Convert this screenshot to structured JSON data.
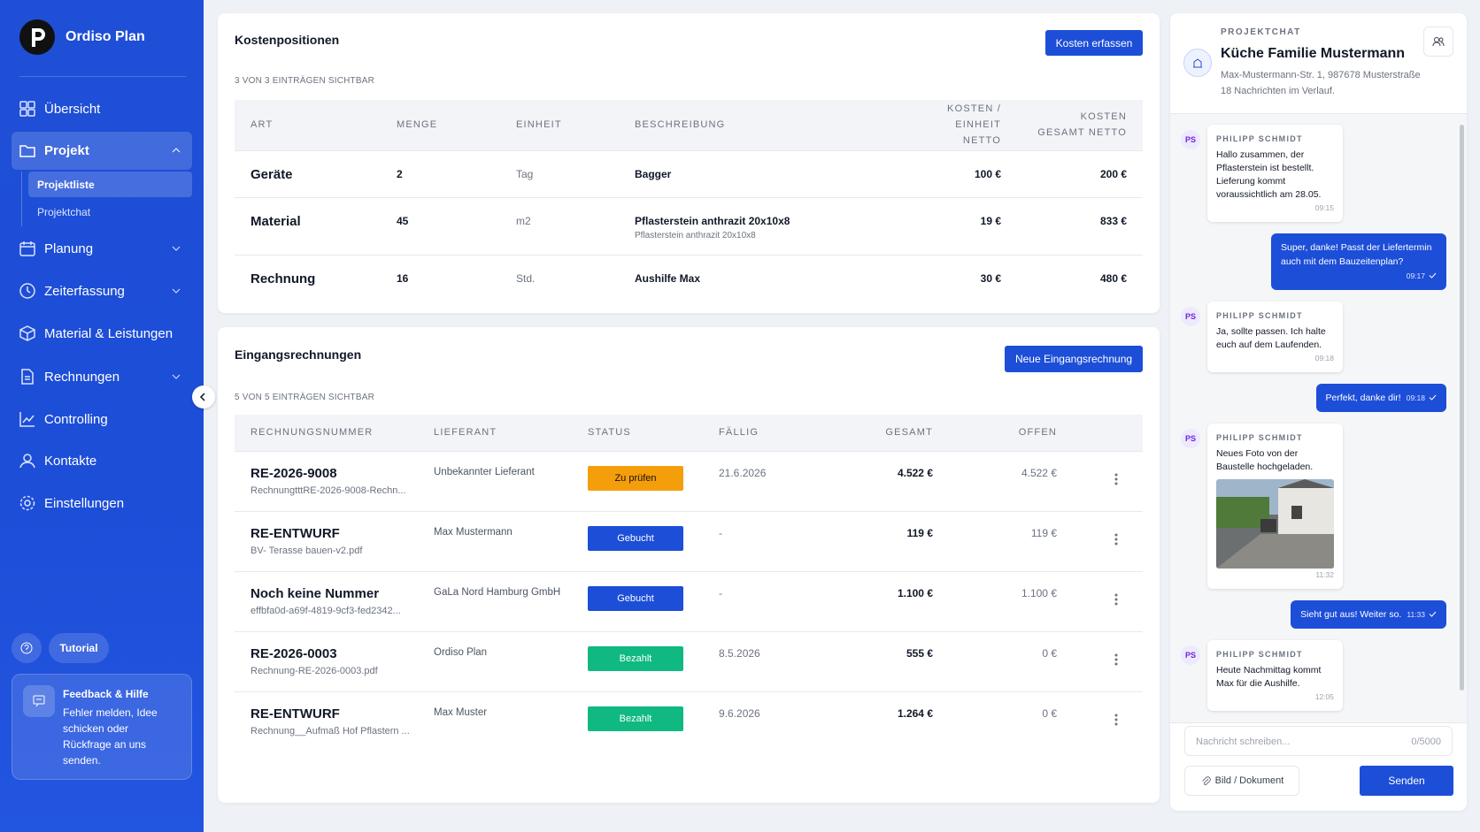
{
  "sidebar": {
    "brand": "Ordiso Plan",
    "nav": [
      "Übersicht",
      "Projekt",
      "Planung",
      "Zeiterfassung",
      "Material & Leistungen",
      "Rechnungen",
      "Controlling",
      "Kontakte",
      "Einstellungen"
    ],
    "subnav": [
      "Projektliste",
      "Projektchat"
    ],
    "tutorial": "Tutorial",
    "feedback": {
      "title": "Feedback & Hilfe",
      "text": "Fehler melden, Idee schicken oder Rückfrage an uns senden."
    }
  },
  "costs": {
    "title": "Kostenpositionen",
    "button": "Kosten erfassen",
    "count": "3 VON 3 EINTRÄGEN SICHTBAR",
    "headers": [
      "ART",
      "MENGE",
      "EINHEIT",
      "BESCHREIBUNG",
      "KOSTEN / EINHEIT NETTO",
      "KOSTEN GESAMT NETTO"
    ],
    "rows": [
      {
        "art": "Geräte",
        "menge": "2",
        "einheit": "Tag",
        "beschreibung": "Bagger",
        "detail": null,
        "einzel": "100 €",
        "gesamt": "200 €"
      },
      {
        "art": "Material",
        "menge": "45",
        "einheit": "m2",
        "beschreibung": "Pflasterstein anthrazit 20x10x8",
        "detail": "Pflasterstein anthrazit 20x10x8",
        "einzel": "19 €",
        "gesamt": "833 €"
      },
      {
        "art": "Rechnung",
        "menge": "16",
        "einheit": "Std.",
        "beschreibung": "Aushilfe Max",
        "detail": null,
        "einzel": "30 €",
        "gesamt": "480 €"
      }
    ]
  },
  "invoices": {
    "title": "Eingangsrechnungen",
    "button": "Neue Eingangsrechnung",
    "count": "5 VON 5 EINTRÄGEN SICHTBAR",
    "headers": [
      "RECHNUNGSNUMMER",
      "LIEFERANT",
      "STATUS",
      "FÄLLIG",
      "GESAMT",
      "OFFEN"
    ],
    "rows": [
      {
        "nummer": "RE-2026-9008",
        "datei": "RechnungtttRE-2026-9008-Rechn...",
        "lieferant": "Unbekannter Lieferant",
        "status": "Zu prüfen",
        "faellig": "21.6.2026",
        "gesamt": "4.522 €",
        "offen": "4.522 €"
      },
      {
        "nummer": "RE-ENTWURF",
        "datei": "BV- Terasse bauen-v2.pdf",
        "lieferant": "Max Mustermann",
        "status": "Gebucht",
        "faellig": "-",
        "gesamt": "119 €",
        "offen": "119 €"
      },
      {
        "nummer": "Noch keine Nummer",
        "datei": "effbfa0d-a69f-4819-9cf3-fed2342...",
        "lieferant": "GaLa Nord Hamburg GmbH",
        "status": "Gebucht",
        "faellig": "-",
        "gesamt": "1.100 €",
        "offen": "1.100 €"
      },
      {
        "nummer": "RE-2026-0003",
        "datei": "Rechnung-RE-2026-0003.pdf",
        "lieferant": "Ordiso Plan",
        "status": "Bezahlt",
        "faellig": "8.5.2026",
        "gesamt": "555 €",
        "offen": "0 €"
      },
      {
        "nummer": "RE-ENTWURF",
        "datei": "Rechnung__Aufmaß Hof Pflastern ...",
        "lieferant": "Max Muster",
        "status": "Bezahlt",
        "faellig": "9.6.2026",
        "gesamt": "1.264 €",
        "offen": "0 €"
      }
    ]
  },
  "chat": {
    "label": "PROJEKTCHAT",
    "title": "Küche Familie Mustermann",
    "address": "Max-Mustermann-Str. 1, 987678 Musterstraße",
    "info": "18 Nachrichten im Verlauf.",
    "messages": [
      {
        "avatar": "PS",
        "sender": "PHILIPP SCHMIDT",
        "text": "Hallo zusammen, der Pflasterstein ist bestellt. Lieferung kommt voraussichtlich am 28.05.",
        "time": "09:15"
      },
      {
        "text": "Super, danke! Passt der Liefertermin auch mit dem Bauzeitenplan?",
        "time": "09:17"
      },
      {
        "avatar": "PS",
        "sender": "PHILIPP SCHMIDT",
        "text": "Ja, sollte passen. Ich halte euch auf dem Laufenden.",
        "time": "09:18"
      },
      {
        "text": "Perfekt, danke dir!",
        "time": "09:18"
      },
      {
        "avatar": "PS",
        "sender": "PHILIPP SCHMIDT",
        "text": "Neues Foto von der Baustelle hochgeladen.",
        "time": "11:32"
      },
      {
        "text": "Sieht gut aus! Weiter so.",
        "time": "11:33"
      },
      {
        "avatar": "PS",
        "sender": "PHILIPP SCHMIDT",
        "text": "Heute Nachmittag kommt Max für die Aushilfe.",
        "time": "12:05"
      }
    ],
    "placeholder": "Nachricht schreiben...",
    "counter": "0/5000",
    "attach": "Bild / Dokument",
    "send": "Senden"
  }
}
